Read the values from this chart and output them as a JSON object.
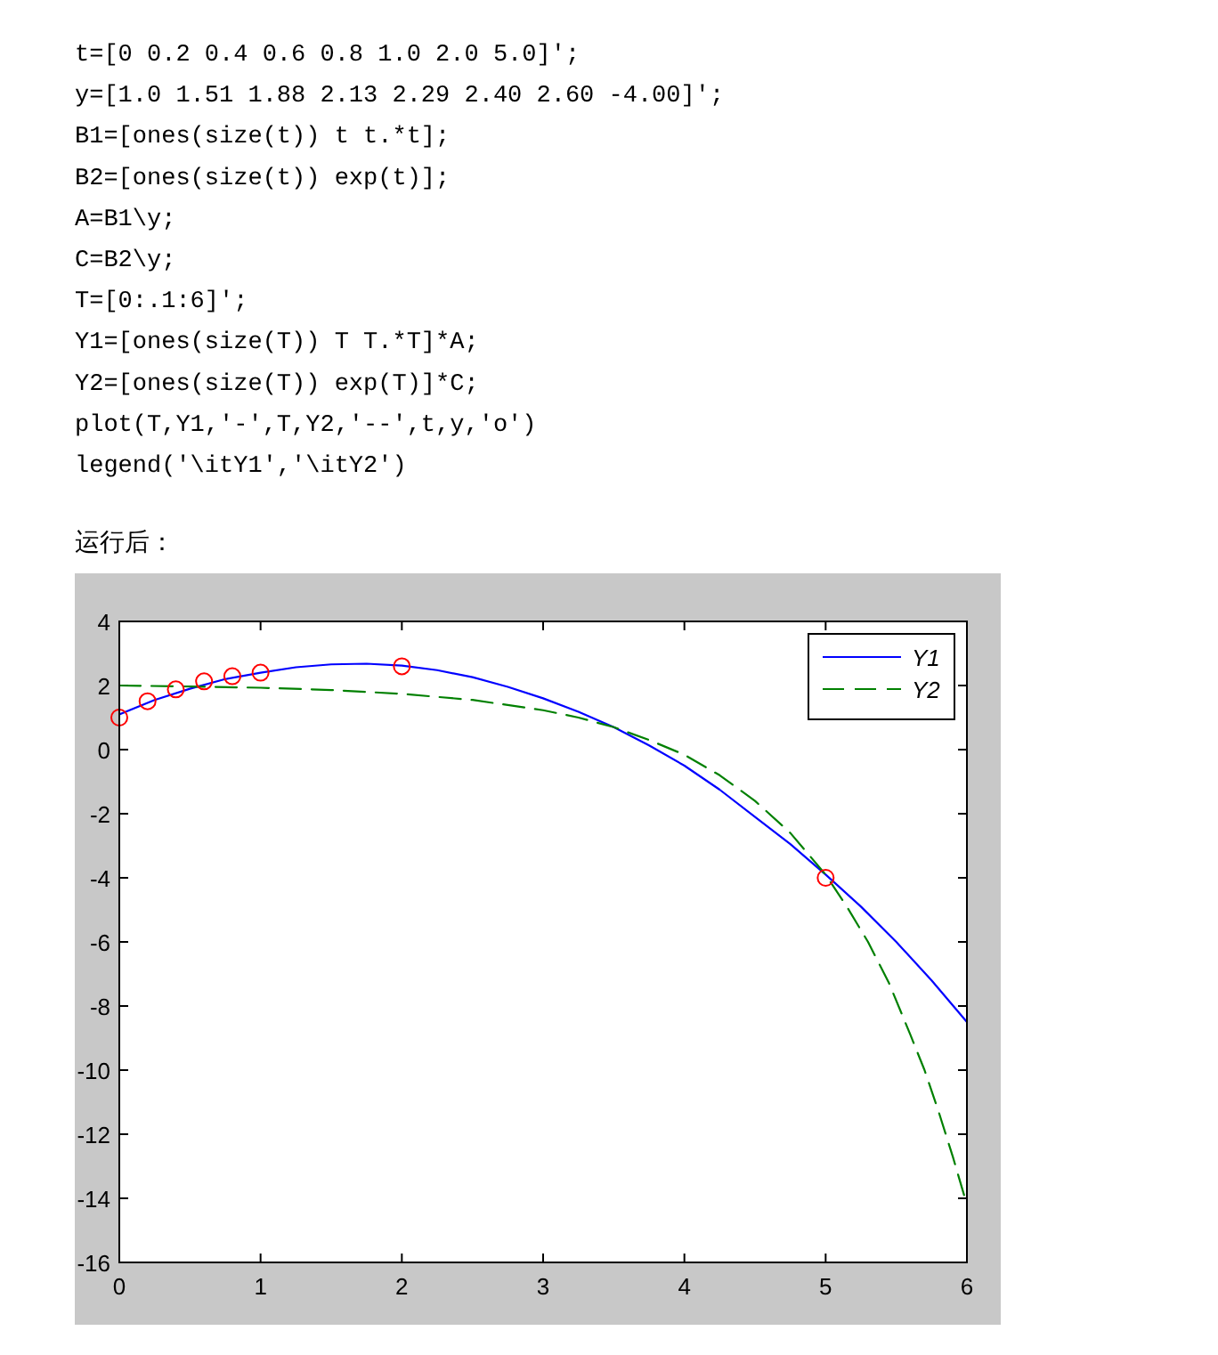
{
  "chart_data": {
    "type": "line",
    "annotations": [
      "t=[0 0.2 0.4 0.6 0.8 1.0 2.0 5.0]';",
      "y=[1.0 1.51 1.88 2.13 2.29 2.40 2.60 -4.00]';",
      "B1=[ones(size(t)) t t.*t];",
      "B2=[ones(size(t)) exp(t)];",
      "A=B1\\y;",
      "C=B2\\y;",
      "T=[0:.1:6]';",
      "Y1=[ones(size(T)) T T.*T]*A;",
      "Y2=[ones(size(T)) exp(T)]*C;",
      "plot(T,Y1,'-',T,Y2,'--',t,y,'o')",
      "legend('\\itY1','\\itY2')",
      "运行后："
    ],
    "xlim": [
      0,
      6
    ],
    "ylim": [
      -16,
      4
    ],
    "xticks": [
      0,
      1,
      2,
      3,
      4,
      5,
      6
    ],
    "yticks": [
      -16,
      -14,
      -12,
      -10,
      -8,
      -6,
      -4,
      -2,
      0,
      2,
      4
    ],
    "grid": false,
    "legend": "top right",
    "series": [
      {
        "name": "Y1",
        "line_style": "solid",
        "marker": "none",
        "color": "#0000ff",
        "x": [
          0,
          0.25,
          0.5,
          0.75,
          1,
          1.25,
          1.5,
          1.75,
          2,
          2.25,
          2.5,
          2.75,
          3,
          3.25,
          3.5,
          3.75,
          4,
          4.25,
          4.5,
          4.75,
          5,
          5.25,
          5.5,
          5.75,
          6
        ],
        "values": [
          1.1,
          1.55,
          1.9,
          2.2,
          2.4,
          2.57,
          2.66,
          2.68,
          2.62,
          2.48,
          2.26,
          1.96,
          1.6,
          1.18,
          0.7,
          0.13,
          -0.5,
          -1.25,
          -2.1,
          -2.95,
          -3.9,
          -4.9,
          -6.0,
          -7.2,
          -8.5
        ]
      },
      {
        "name": "Y2",
        "line_style": "dashed",
        "marker": "none",
        "color": "#008000",
        "x": [
          0,
          0.5,
          1,
          1.5,
          2,
          2.5,
          3,
          3.25,
          3.5,
          3.75,
          4,
          4.25,
          4.5,
          4.75,
          5,
          5.15,
          5.3,
          5.45,
          5.6,
          5.7,
          5.8,
          5.9,
          6
        ],
        "values": [
          2.0,
          1.97,
          1.93,
          1.86,
          1.74,
          1.55,
          1.23,
          1.0,
          0.7,
          0.3,
          -0.16,
          -0.8,
          -1.6,
          -2.6,
          -3.9,
          -4.9,
          -6.0,
          -7.3,
          -8.9,
          -10.0,
          -11.3,
          -12.7,
          -14.2
        ]
      },
      {
        "type": "scatter",
        "marker": "circle",
        "color": "#ff0000",
        "x": [
          0,
          0.2,
          0.4,
          0.6,
          0.8,
          1.0,
          2.0,
          5.0
        ],
        "values": [
          1.0,
          1.51,
          1.88,
          2.13,
          2.29,
          2.4,
          2.6,
          -4.0
        ]
      }
    ]
  }
}
